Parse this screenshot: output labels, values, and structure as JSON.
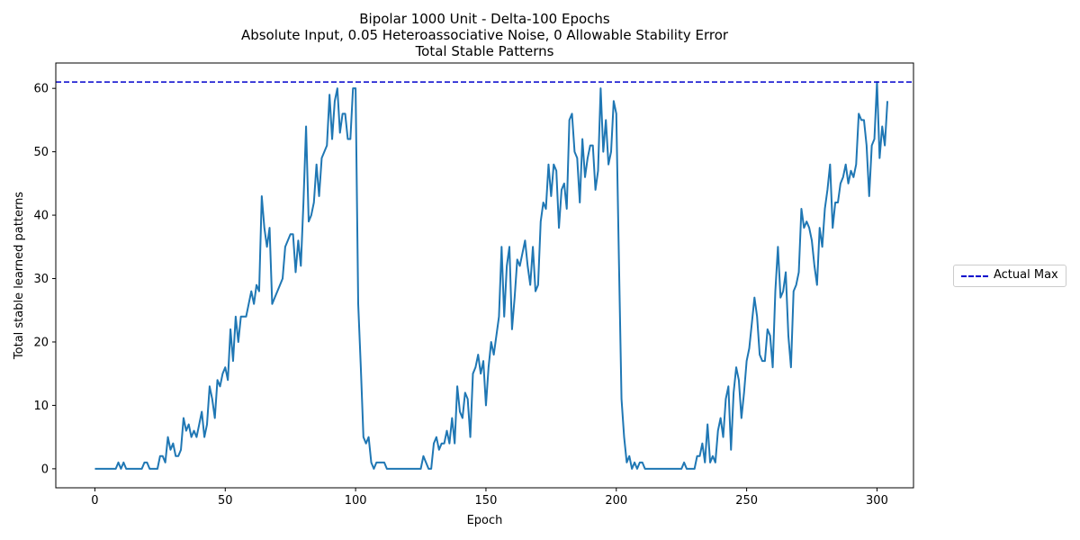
{
  "chart_data": {
    "type": "line",
    "title": [
      "Bipolar 1000 Unit - Delta-100 Epochs",
      "Absolute Input, 0.05 Heteroassociative Noise, 0 Allowable Stability Error",
      "Total Stable Patterns"
    ],
    "xlabel": "Epoch",
    "ylabel": "Total stable learned patterns",
    "xlim": [
      -15,
      314
    ],
    "ylim": [
      -3,
      64
    ],
    "xticks": [
      0,
      50,
      100,
      150,
      200,
      250,
      300
    ],
    "yticks": [
      0,
      10,
      20,
      30,
      40,
      50,
      60
    ],
    "grid": false,
    "legend_placement": "right",
    "reference_line": {
      "name": "Actual Max",
      "value": 61,
      "color": "#0000cc",
      "style": "dashed"
    },
    "series": [
      {
        "color": "#1f77b4",
        "x_start": 0,
        "values": [
          0,
          0,
          0,
          0,
          0,
          0,
          0,
          0,
          0,
          1,
          0,
          1,
          0,
          0,
          0,
          0,
          0,
          0,
          0,
          1,
          1,
          0,
          0,
          0,
          0,
          2,
          2,
          1,
          5,
          3,
          4,
          2,
          2,
          3,
          8,
          6,
          7,
          5,
          6,
          5,
          7,
          9,
          5,
          7,
          13,
          11,
          8,
          14,
          13,
          15,
          16,
          14,
          22,
          17,
          24,
          20,
          24,
          24,
          24,
          26,
          28,
          26,
          29,
          28,
          43,
          38,
          35,
          38,
          26,
          27,
          28,
          29,
          30,
          35,
          36,
          37,
          37,
          31,
          36,
          32,
          42,
          54,
          39,
          40,
          42,
          48,
          43,
          49,
          50,
          51,
          59,
          52,
          58,
          60,
          53,
          56,
          56,
          52,
          52,
          60,
          60,
          26,
          16,
          5,
          4,
          5,
          1,
          0,
          1,
          1,
          1,
          1,
          0,
          0,
          0,
          0,
          0,
          0,
          0,
          0,
          0,
          0,
          0,
          0,
          0,
          0,
          2,
          1,
          0,
          0,
          4,
          5,
          3,
          4,
          4,
          6,
          4,
          8,
          4,
          13,
          9,
          8,
          12,
          11,
          5,
          15,
          16,
          18,
          15,
          17,
          10,
          16,
          20,
          18,
          21,
          24,
          35,
          24,
          32,
          35,
          22,
          27,
          33,
          32,
          34,
          36,
          32,
          29,
          35,
          28,
          29,
          39,
          42,
          41,
          48,
          43,
          48,
          47,
          38,
          44,
          45,
          41,
          55,
          56,
          50,
          49,
          42,
          52,
          46,
          49,
          51,
          51,
          44,
          47,
          60,
          50,
          55,
          48,
          50,
          58,
          56,
          33,
          11,
          5,
          1,
          2,
          0,
          1,
          0,
          1,
          1,
          0,
          0,
          0,
          0,
          0,
          0,
          0,
          0,
          0,
          0,
          0,
          0,
          0,
          0,
          0,
          1,
          0,
          0,
          0,
          0,
          2,
          2,
          4,
          1,
          7,
          1,
          2,
          1,
          6,
          8,
          5,
          11,
          13,
          3,
          12,
          16,
          14,
          8,
          12,
          17,
          19,
          23,
          27,
          24,
          18,
          17,
          17,
          22,
          21,
          16,
          28,
          35,
          27,
          28,
          31,
          21,
          16,
          28,
          29,
          31,
          41,
          38,
          39,
          38,
          36,
          32,
          29,
          38,
          35,
          41,
          44,
          48,
          38,
          42,
          42,
          45,
          46,
          48,
          45,
          47,
          46,
          48,
          56,
          55,
          55,
          51,
          43,
          51,
          52,
          61,
          49,
          54,
          51,
          58
        ]
      }
    ]
  }
}
